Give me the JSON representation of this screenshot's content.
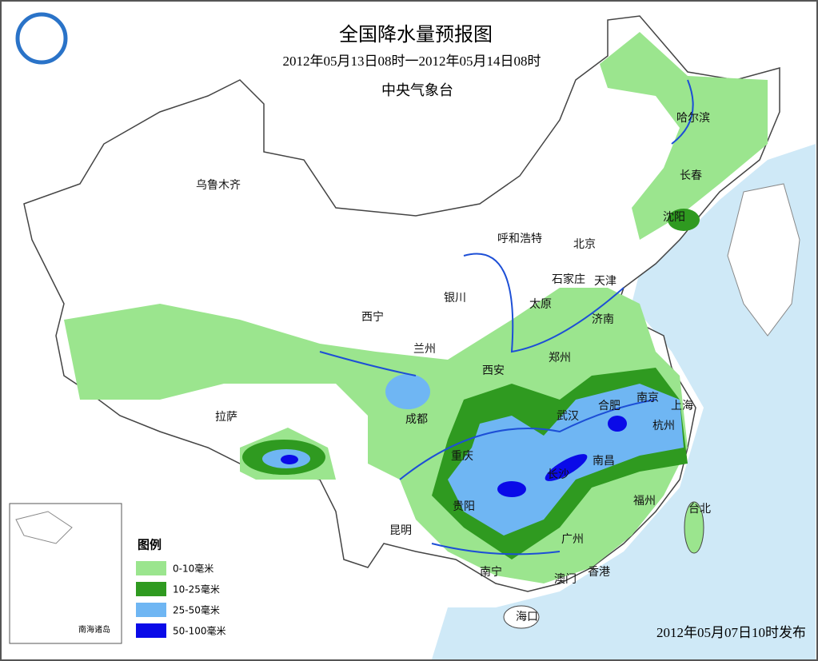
{
  "header": {
    "title": "全国降水量预报图",
    "subtitle": "2012年05月13日08时一2012年05月14日08时",
    "issuer": "中央气象台"
  },
  "legend": {
    "title": "图例",
    "items": [
      {
        "label": "0-10毫米",
        "color": "#9be58e"
      },
      {
        "label": "10-25毫米",
        "color": "#2f9a20"
      },
      {
        "label": "25-50毫米",
        "color": "#6fb6f3"
      },
      {
        "label": "50-100毫米",
        "color": "#0a0ae8"
      }
    ]
  },
  "cities": [
    "乌鲁木齐",
    "哈尔滨",
    "长春",
    "沈阳",
    "呼和浩特",
    "北京",
    "天津",
    "石家庄",
    "银川",
    "太原",
    "西宁",
    "济南",
    "兰州",
    "郑州",
    "西安",
    "拉萨",
    "成都",
    "南京",
    "合肥",
    "上海",
    "武汉",
    "杭州",
    "重庆",
    "长沙",
    "南昌",
    "贵阳",
    "福州",
    "台北",
    "昆明",
    "广州",
    "南宁",
    "澳门",
    "香港",
    "海口"
  ],
  "inset": {
    "label": "南海诸岛"
  },
  "footer": {
    "issued": "2012年05月07日10时发布"
  }
}
